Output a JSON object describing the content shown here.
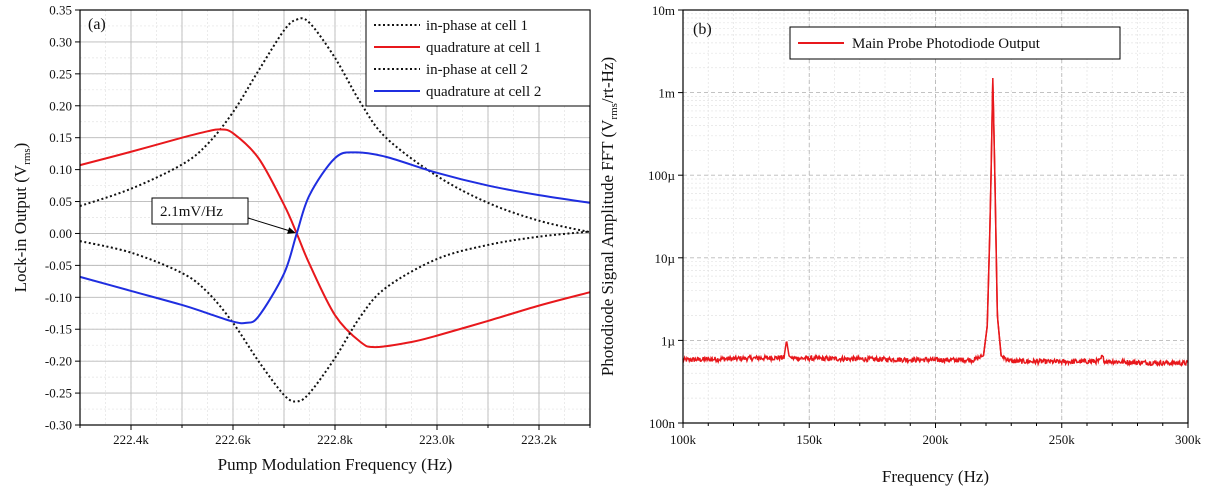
{
  "colors": {
    "in_phase": "#111111",
    "quad1": "#e8181c",
    "quad2": "#1f2ee0",
    "spectrum": "#e8181c",
    "grid_major": "#b9b9b9",
    "grid_minor": "#e3e3e3"
  },
  "chart_data": [
    {
      "type": "line",
      "panel_label": "(a)",
      "xlabel": "Pump Modulation Frequency (Hz)",
      "ylabel_main": "Lock-in Output (V",
      "ylabel_sub": "rms",
      "ylabel_tail": ")",
      "xlim": [
        222300,
        223300
      ],
      "ylim": [
        -0.3,
        0.35
      ],
      "x_ticks": [
        222400,
        222600,
        222800,
        223000,
        223200
      ],
      "x_tick_labels": [
        "222.4k",
        "222.6k",
        "222.8k",
        "223.0k",
        "223.2k"
      ],
      "y_ticks": [
        -0.3,
        -0.25,
        -0.2,
        -0.15,
        -0.1,
        -0.05,
        0.0,
        0.05,
        0.1,
        0.15,
        0.2,
        0.25,
        0.3,
        0.35
      ],
      "y_tick_labels": [
        "-0.30",
        "-0.25",
        "-0.20",
        "-0.15",
        "-0.10",
        "-0.05",
        "0.00",
        "0.05",
        "0.10",
        "0.15",
        "0.20",
        "0.25",
        "0.30",
        "0.35"
      ],
      "grid": true,
      "legend_position": "top-right",
      "annotation": {
        "text": "2.1mV/Hz",
        "point": [
          222725,
          0.0
        ]
      },
      "series": [
        {
          "name": "in-phase at cell 1",
          "style": "dotted",
          "color_key": "in_phase",
          "x": [
            222300,
            222400,
            222500,
            222550,
            222600,
            222650,
            222700,
            222725,
            222750,
            222800,
            222850,
            222900,
            223000,
            223100,
            223200,
            223300
          ],
          "y": [
            0.043,
            0.07,
            0.108,
            0.14,
            0.19,
            0.255,
            0.318,
            0.335,
            0.33,
            0.275,
            0.205,
            0.15,
            0.09,
            0.048,
            0.02,
            0.002
          ]
        },
        {
          "name": "quadrature at cell 1",
          "style": "solid",
          "color_key": "quad1",
          "x": [
            222300,
            222400,
            222500,
            222550,
            222575,
            222600,
            222650,
            222700,
            222725,
            222750,
            222800,
            222850,
            222880,
            222950,
            223000,
            223100,
            223200,
            223300
          ],
          "y": [
            0.107,
            0.128,
            0.15,
            0.16,
            0.163,
            0.157,
            0.118,
            0.045,
            0.0,
            -0.048,
            -0.128,
            -0.17,
            -0.178,
            -0.17,
            -0.16,
            -0.137,
            -0.113,
            -0.092
          ]
        },
        {
          "name": "in-phase at cell 2",
          "style": "dotted",
          "color_key": "in_phase",
          "x": [
            222300,
            222400,
            222500,
            222550,
            222600,
            222650,
            222700,
            222725,
            222750,
            222800,
            222850,
            222900,
            223000,
            223100,
            223200,
            223300
          ],
          "y": [
            -0.012,
            -0.03,
            -0.062,
            -0.092,
            -0.14,
            -0.2,
            -0.253,
            -0.263,
            -0.25,
            -0.195,
            -0.13,
            -0.085,
            -0.04,
            -0.018,
            -0.005,
            0.003
          ]
        },
        {
          "name": "quadrature at cell 2",
          "style": "solid",
          "color_key": "quad2",
          "x": [
            222300,
            222400,
            222500,
            222550,
            222600,
            222625,
            222650,
            222700,
            222725,
            222750,
            222800,
            222840,
            222900,
            223000,
            223100,
            223200,
            223300
          ],
          "y": [
            -0.068,
            -0.09,
            -0.112,
            -0.125,
            -0.138,
            -0.14,
            -0.13,
            -0.063,
            0.0,
            0.06,
            0.118,
            0.127,
            0.12,
            0.095,
            0.075,
            0.06,
            0.048
          ]
        }
      ]
    },
    {
      "type": "line",
      "panel_label": "(b)",
      "xlabel": "Frequency (Hz)",
      "ylabel_main": "Photodiode Signal Amplitude FFT (V",
      "ylabel_sub": "rms",
      "ylabel_tail": "/rt-Hz)",
      "xlim": [
        100000,
        300000
      ],
      "ylim": [
        1e-07,
        0.01
      ],
      "y_scale": "log",
      "x_ticks": [
        100000,
        150000,
        200000,
        250000,
        300000
      ],
      "x_tick_labels": [
        "100k",
        "150k",
        "200k",
        "250k",
        "300k"
      ],
      "y_ticks": [
        1e-07,
        1e-06,
        1e-05,
        0.0001,
        0.001,
        0.01
      ],
      "y_tick_labels": [
        "100n",
        "1µ",
        "10µ",
        "100µ",
        "1m",
        "10m"
      ],
      "grid": true,
      "legend_position": "top-left",
      "series": [
        {
          "name": "Main Probe Photodiode Output",
          "style": "solid",
          "color_key": "spectrum",
          "x": [
            100000,
            120000,
            140000,
            141000,
            142000,
            143000,
            160000,
            180000,
            200000,
            215000,
            219000,
            220500,
            221500,
            222000,
            222700,
            223500,
            224500,
            226000,
            230000,
            250000,
            265000,
            266000,
            267000,
            280000,
            300000
          ],
          "y": [
            5.8e-07,
            6e-07,
            6.2e-07,
            1e-06,
            6.5e-07,
            6.1e-07,
            6e-07,
            5.9e-07,
            5.8e-07,
            5.8e-07,
            6.5e-07,
            1.5e-06,
            2e-05,
            0.0001,
            0.0015,
            0.0001,
            2e-06,
            6.5e-07,
            5.6e-07,
            5.5e-07,
            5.6e-07,
            6.4e-07,
            5.6e-07,
            5.4e-07,
            5.3e-07
          ]
        }
      ]
    }
  ]
}
